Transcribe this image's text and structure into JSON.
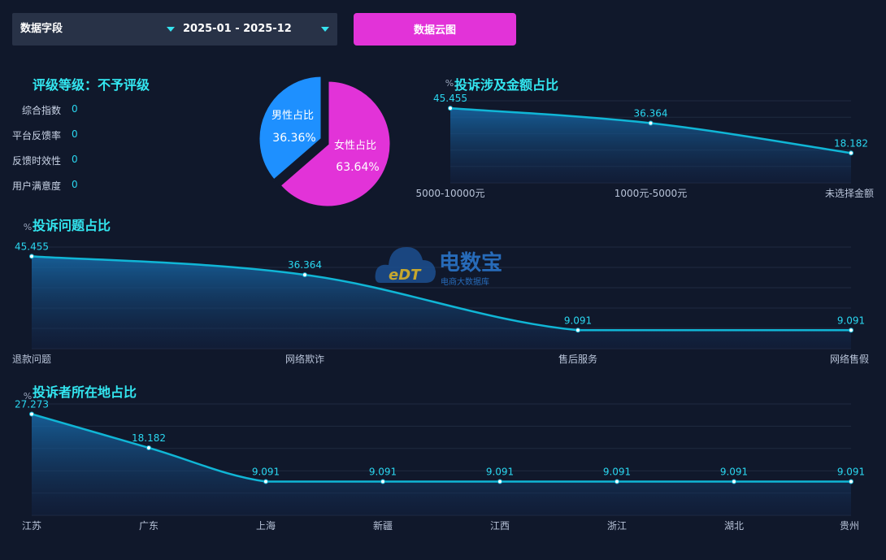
{
  "toolbar": {
    "field_select": "数据字段",
    "date_range": "2025-01 - 2025-12",
    "cloud_button": "数据云图"
  },
  "rating": {
    "title": "评级等级：不予评级",
    "metrics": [
      {
        "label": "综合指数",
        "value": "0"
      },
      {
        "label": "平台反馈率",
        "value": "0"
      },
      {
        "label": "反馈时效性",
        "value": "0"
      },
      {
        "label": "用户满意度",
        "value": "0"
      }
    ]
  },
  "watermark": {
    "main": "电数宝",
    "sub": "电商大数据库",
    "logo": "eDT"
  },
  "colors": {
    "accent": "#33e6f0",
    "line": "#10b6d6",
    "male": "#1e90ff",
    "female": "#e233d8",
    "button": "#e233d8"
  },
  "chart_data": [
    {
      "type": "pie",
      "slices": [
        {
          "label": "男性占比",
          "value": 36.36,
          "display": "36.36%",
          "color": "#1e90ff"
        },
        {
          "label": "女性占比",
          "value": 63.64,
          "display": "63.64%",
          "color": "#e233d8"
        }
      ]
    },
    {
      "type": "area",
      "title": "投诉涉及金额占比",
      "ylabel": "%",
      "categories": [
        "5000-10000元",
        "1000元-5000元",
        "未选择金额"
      ],
      "values": [
        45.455,
        36.364,
        18.182
      ],
      "labels": [
        "45.455",
        "36.364",
        "18.182"
      ],
      "ylim": [
        0,
        50
      ]
    },
    {
      "type": "area",
      "title": "投诉问题占比",
      "ylabel": "%",
      "categories": [
        "退款问题",
        "网络欺诈",
        "售后服务",
        "网络售假"
      ],
      "values": [
        45.455,
        36.364,
        9.091,
        9.091
      ],
      "labels": [
        "45.455",
        "36.364",
        "9.091",
        "9.091"
      ],
      "ylim": [
        0,
        50
      ]
    },
    {
      "type": "area",
      "title": "投诉者所在地占比",
      "ylabel": "%",
      "categories": [
        "江苏",
        "广东",
        "上海",
        "新疆",
        "江西",
        "浙江",
        "湖北",
        "贵州"
      ],
      "values": [
        27.273,
        18.182,
        9.091,
        9.091,
        9.091,
        9.091,
        9.091,
        9.091
      ],
      "labels": [
        "27.273",
        "18.182",
        "9.091",
        "9.091",
        "9.091",
        "9.091",
        "9.091",
        "9.091"
      ],
      "ylim": [
        0,
        30
      ]
    }
  ]
}
